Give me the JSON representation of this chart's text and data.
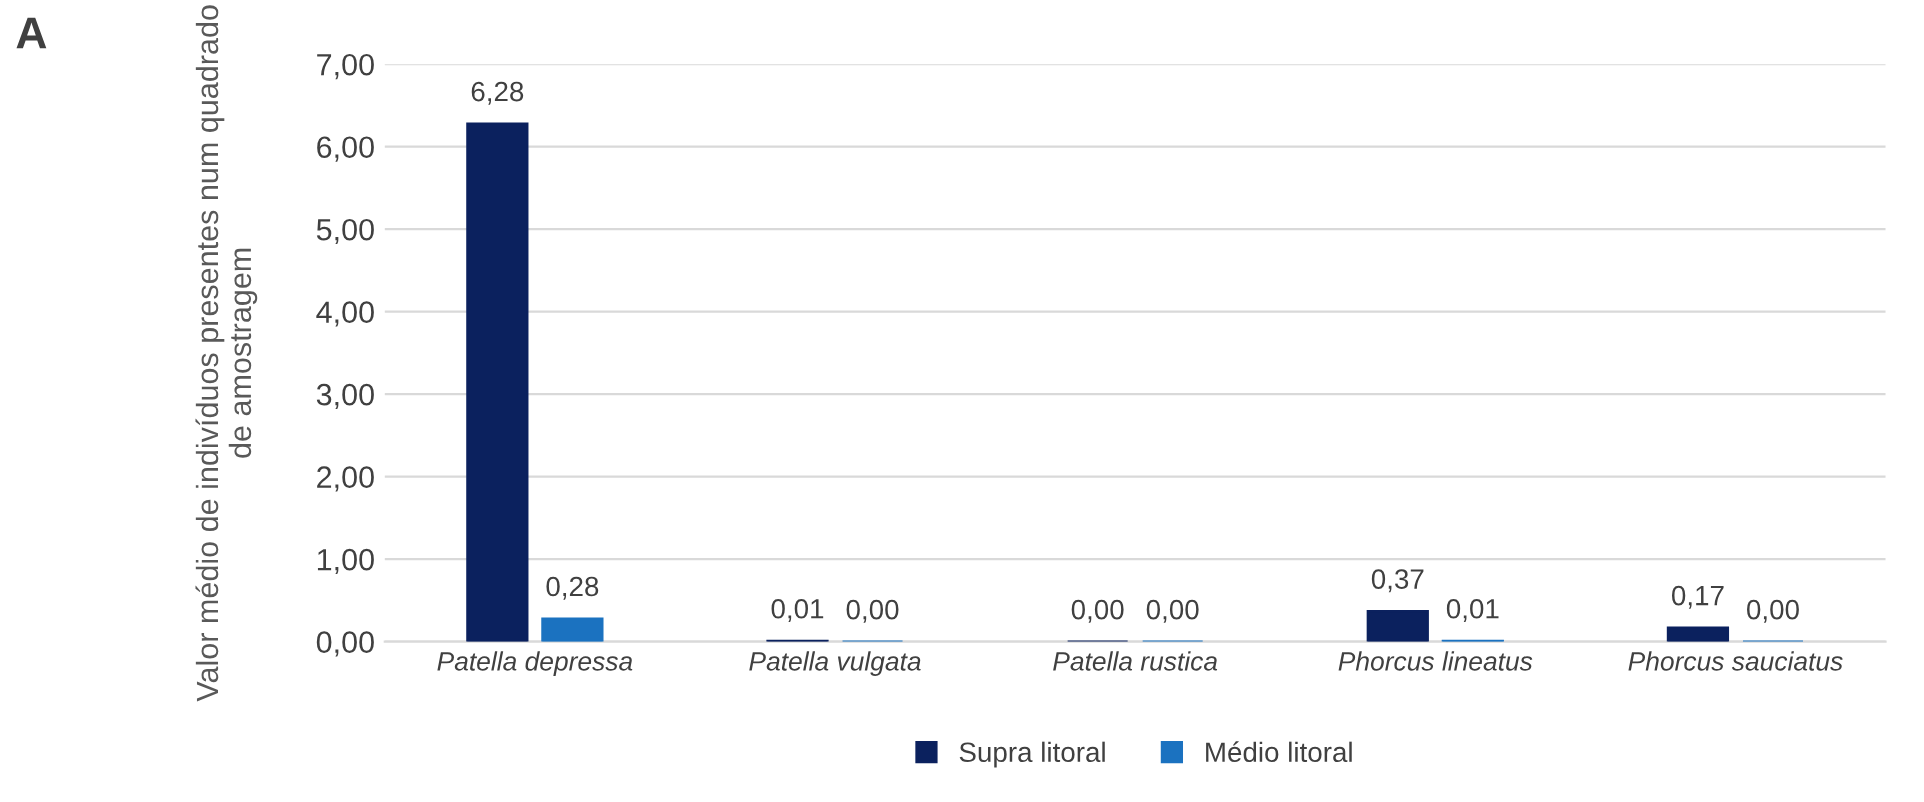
{
  "chart_data": {
    "type": "bar",
    "ylabel": "Valor médio de indivíduos presentes num quadrado de amostragem",
    "annotations": [
      "A"
    ],
    "categories": [
      "Patella depressa",
      "Patella vulgata",
      "Patella rustica",
      "Phorcus lineatus",
      "Phorcus sauciatus"
    ],
    "series": [
      {
        "name": "Supra litoral",
        "color": "#0b215e",
        "values": [
          6.28,
          0.01,
          0.0,
          0.37,
          0.17
        ],
        "value_labels": [
          "6,28",
          "0,01",
          "0,00",
          "0,37",
          "0,17"
        ]
      },
      {
        "name": "Médio litoral",
        "color": "#1b72c0",
        "values": [
          0.28,
          0.0,
          0.0,
          0.01,
          0.0
        ],
        "value_labels": [
          "0,28",
          "0,00",
          "0,00",
          "0,01",
          "0,00"
        ]
      }
    ],
    "ylim": [
      0,
      7
    ],
    "yticks": [
      {
        "value": 0,
        "label": "0,00"
      },
      {
        "value": 1,
        "label": "1,00"
      },
      {
        "value": 2,
        "label": "2,00"
      },
      {
        "value": 3,
        "label": "3,00"
      },
      {
        "value": 4,
        "label": "4,00"
      },
      {
        "value": 5,
        "label": "5,00"
      },
      {
        "value": 6,
        "label": "6,00"
      },
      {
        "value": 7,
        "label": "7,00"
      }
    ],
    "grid": "y",
    "legend": "bottom"
  }
}
